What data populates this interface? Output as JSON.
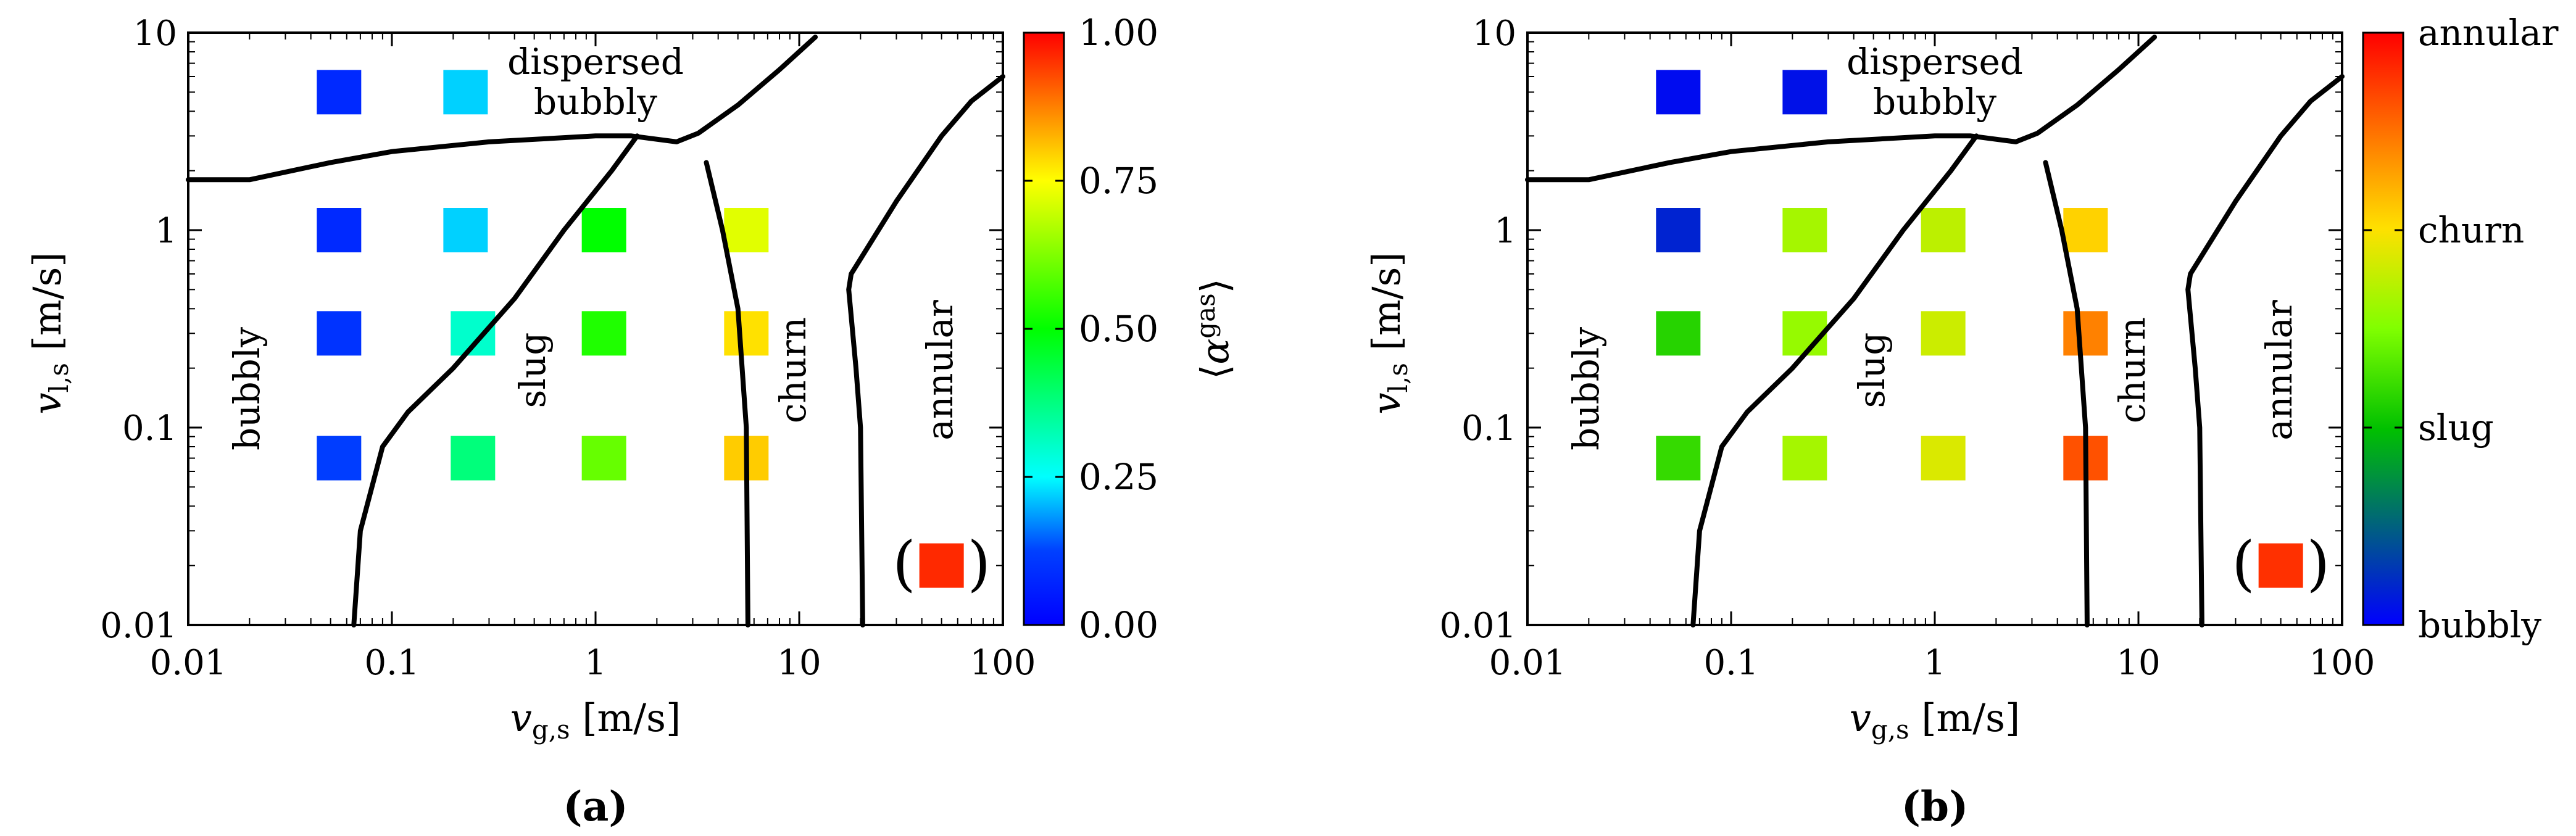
{
  "chart_data": [
    {
      "type": "scatter",
      "panel": "(a)",
      "title": "",
      "xlabel": "v_g,s [m/s]",
      "ylabel": "v_l,s [m/s]",
      "xscale": "log",
      "yscale": "log",
      "xlim": [
        0.01,
        100
      ],
      "ylim": [
        0.01,
        10
      ],
      "x_ticks": [
        "0.01",
        "0.1",
        "1",
        "10",
        "100"
      ],
      "y_ticks": [
        "0.01",
        "0.1",
        "1",
        "10"
      ],
      "regions": [
        "dispersed",
        "bubbly",
        "bubbly",
        "slug",
        "churn",
        "annular"
      ],
      "colorbar": {
        "label": "⟨αgas⟩",
        "ticks": [
          "0.00",
          "0.25",
          "0.50",
          "0.75",
          "1.00"
        ],
        "range": [
          0,
          1
        ]
      },
      "points": [
        {
          "x": 0.055,
          "y": 5.0,
          "value": 0.08
        },
        {
          "x": 0.23,
          "y": 5.0,
          "value": 0.22
        },
        {
          "x": 0.055,
          "y": 1.0,
          "value": 0.08
        },
        {
          "x": 0.23,
          "y": 1.0,
          "value": 0.22
        },
        {
          "x": 1.1,
          "y": 1.0,
          "value": 0.5
        },
        {
          "x": 5.5,
          "y": 1.0,
          "value": 0.72
        },
        {
          "x": 0.055,
          "y": 0.3,
          "value": 0.1
        },
        {
          "x": 0.25,
          "y": 0.3,
          "value": 0.3
        },
        {
          "x": 1.1,
          "y": 0.3,
          "value": 0.53
        },
        {
          "x": 5.5,
          "y": 0.3,
          "value": 0.78
        },
        {
          "x": 0.055,
          "y": 0.07,
          "value": 0.12
        },
        {
          "x": 0.25,
          "y": 0.07,
          "value": 0.38
        },
        {
          "x": 1.1,
          "y": 0.07,
          "value": 0.6
        },
        {
          "x": 5.5,
          "y": 0.07,
          "value": 0.8
        },
        {
          "x": 50,
          "y": 0.02,
          "value": 0.96,
          "bracketed": true
        }
      ]
    },
    {
      "type": "scatter",
      "panel": "(b)",
      "title": "",
      "xlabel": "v_g,s [m/s]",
      "ylabel": "v_l,s [m/s]",
      "xscale": "log",
      "yscale": "log",
      "xlim": [
        0.01,
        100
      ],
      "ylim": [
        0.01,
        10
      ],
      "x_ticks": [
        "0.01",
        "0.1",
        "1",
        "10",
        "100"
      ],
      "y_ticks": [
        "0.01",
        "0.1",
        "1",
        "10"
      ],
      "regions": [
        "dispersed",
        "bubbly",
        "bubbly",
        "slug",
        "churn",
        "annular"
      ],
      "colorbar": {
        "label": "",
        "ticks": [
          "bubbly",
          "slug",
          "churn",
          "annular"
        ],
        "range": [
          0,
          1
        ]
      },
      "points": [
        {
          "x": 0.055,
          "y": 5.0,
          "value": 0.02
        },
        {
          "x": 0.23,
          "y": 5.0,
          "value": 0.03
        },
        {
          "x": 0.055,
          "y": 1.0,
          "value": 0.06
        },
        {
          "x": 0.23,
          "y": 1.0,
          "value": 0.55
        },
        {
          "x": 1.1,
          "y": 1.0,
          "value": 0.58
        },
        {
          "x": 5.5,
          "y": 1.0,
          "value": 0.69
        },
        {
          "x": 0.055,
          "y": 0.3,
          "value": 0.38
        },
        {
          "x": 0.23,
          "y": 0.3,
          "value": 0.53
        },
        {
          "x": 1.1,
          "y": 0.3,
          "value": 0.6
        },
        {
          "x": 5.5,
          "y": 0.3,
          "value": 0.81
        },
        {
          "x": 0.055,
          "y": 0.07,
          "value": 0.4
        },
        {
          "x": 0.23,
          "y": 0.07,
          "value": 0.55
        },
        {
          "x": 1.1,
          "y": 0.07,
          "value": 0.62
        },
        {
          "x": 5.5,
          "y": 0.07,
          "value": 0.88
        },
        {
          "x": 50,
          "y": 0.02,
          "value": 0.93,
          "bracketed": true
        }
      ]
    }
  ],
  "boundaries": {
    "upper": [
      [
        0.01,
        1.8
      ],
      [
        0.02,
        1.8
      ],
      [
        0.05,
        2.2
      ],
      [
        0.1,
        2.5
      ],
      [
        0.3,
        2.8
      ],
      [
        1,
        3.0
      ],
      [
        1.5,
        3.0
      ],
      [
        2.5,
        2.8
      ],
      [
        3.2,
        3.1
      ],
      [
        5,
        4.3
      ],
      [
        8,
        6.5
      ],
      [
        12,
        9.5
      ]
    ],
    "bubbly_slug": [
      [
        0.065,
        0.01
      ],
      [
        0.07,
        0.03
      ],
      [
        0.09,
        0.08
      ],
      [
        0.12,
        0.12
      ],
      [
        0.2,
        0.2
      ],
      [
        0.4,
        0.45
      ],
      [
        0.7,
        1.0
      ],
      [
        1.2,
        2.0
      ],
      [
        1.6,
        3.0
      ]
    ],
    "slug_churn": [
      [
        3.5,
        2.2
      ],
      [
        4.2,
        1.0
      ],
      [
        5,
        0.4
      ],
      [
        5.5,
        0.1
      ],
      [
        5.6,
        0.01
      ]
    ],
    "churn_annular": [
      [
        100,
        6.0
      ],
      [
        70,
        4.5
      ],
      [
        50,
        3.0
      ],
      [
        30,
        1.4
      ],
      [
        18,
        0.6
      ],
      [
        17.5,
        0.5
      ],
      [
        19,
        0.2
      ],
      [
        20,
        0.1
      ],
      [
        20.5,
        0.01
      ]
    ]
  },
  "annotations": {
    "dispersed": "dispersed",
    "bubbly_top": "bubbly",
    "bubbly": "bubbly",
    "slug": "slug",
    "churn": "churn",
    "annular": "annular"
  },
  "panel_tags": [
    "(a)",
    "(b)"
  ]
}
